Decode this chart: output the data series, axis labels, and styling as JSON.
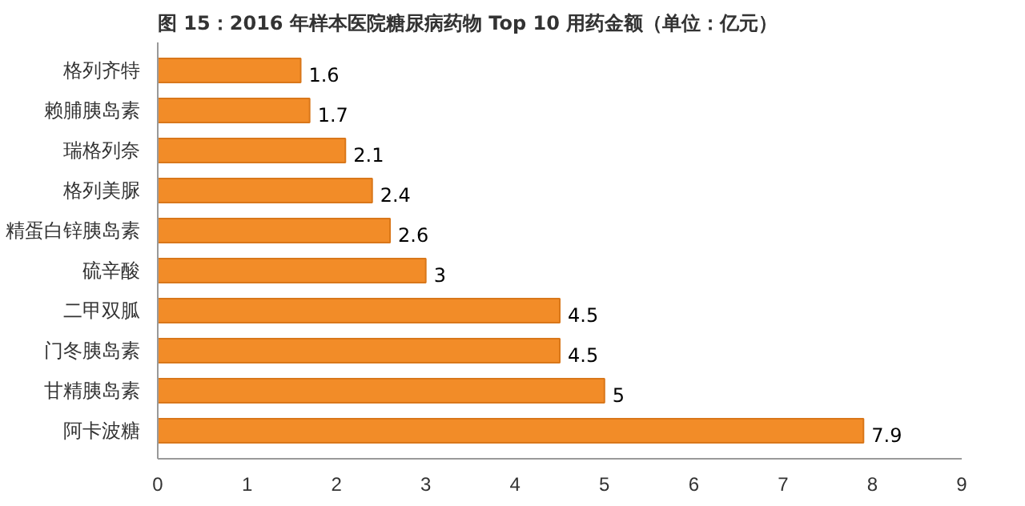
{
  "chart_data": {
    "type": "bar",
    "orientation": "horizontal",
    "title": "图 15：2016 年样本医院糖尿病药物 Top 10 用药金额（单位：亿元）",
    "categories": [
      "格列齐特",
      "赖脯胰岛素",
      "瑞格列奈",
      "格列美脲",
      "精蛋白锌胰岛素",
      "硫辛酸",
      "二甲双胍",
      "门冬胰岛素",
      "甘精胰岛素",
      "阿卡波糖"
    ],
    "values": [
      1.6,
      1.7,
      2.1,
      2.4,
      2.6,
      3,
      4.5,
      4.5,
      5,
      7.9
    ],
    "color": "#f28c28",
    "xlim": [
      0,
      9
    ],
    "xticks": [
      0,
      1,
      2,
      3,
      4,
      5,
      6,
      7,
      8,
      9
    ],
    "grid": false,
    "data_labels": true
  }
}
